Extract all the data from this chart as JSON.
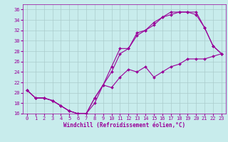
{
  "xlabel": "Windchill (Refroidissement éolien,°C)",
  "bg_color": "#c8ecec",
  "line_color": "#990099",
  "grid_color": "#aacccc",
  "xlim": [
    -0.5,
    23.5
  ],
  "ylim": [
    16,
    37
  ],
  "yticks": [
    16,
    18,
    20,
    22,
    24,
    26,
    28,
    30,
    32,
    34,
    36
  ],
  "xticks": [
    0,
    1,
    2,
    3,
    4,
    5,
    6,
    7,
    8,
    9,
    10,
    11,
    12,
    13,
    14,
    15,
    16,
    17,
    18,
    19,
    20,
    21,
    22,
    23
  ],
  "line1_x": [
    0,
    1,
    2,
    3,
    4,
    5,
    6,
    7,
    8,
    9,
    10,
    11,
    12,
    13,
    14,
    15,
    16,
    17,
    18,
    19,
    20,
    21,
    22,
    23
  ],
  "line1_y": [
    20.5,
    19.0,
    19.0,
    18.5,
    17.5,
    16.5,
    16.0,
    16.0,
    19.0,
    21.5,
    25.0,
    28.5,
    28.5,
    31.5,
    32.0,
    33.5,
    34.5,
    35.5,
    35.5,
    35.5,
    35.5,
    32.5,
    29.0,
    27.5
  ],
  "line2_x": [
    0,
    1,
    2,
    3,
    4,
    5,
    6,
    7,
    8,
    9,
    10,
    11,
    12,
    13,
    14,
    15,
    16,
    17,
    18,
    19,
    20,
    21,
    22,
    23
  ],
  "line2_y": [
    20.5,
    19.0,
    19.0,
    18.5,
    17.5,
    16.5,
    16.0,
    16.0,
    19.0,
    21.5,
    24.0,
    27.5,
    28.5,
    31.0,
    32.0,
    33.0,
    34.5,
    35.0,
    35.5,
    35.5,
    35.0,
    32.5,
    29.0,
    27.5
  ],
  "line3_x": [
    0,
    1,
    2,
    3,
    4,
    5,
    6,
    7,
    8,
    9,
    10,
    11,
    12,
    13,
    14,
    15,
    16,
    17,
    18,
    19,
    20,
    21,
    22,
    23
  ],
  "line3_y": [
    20.5,
    19.0,
    19.0,
    18.5,
    17.5,
    16.5,
    16.0,
    16.0,
    18.0,
    21.5,
    21.0,
    23.0,
    24.5,
    24.0,
    25.0,
    23.0,
    24.0,
    25.0,
    25.5,
    26.5,
    26.5,
    26.5,
    27.0,
    27.5
  ],
  "xlabel_fontsize": 5.5,
  "tick_fontsize": 5,
  "linewidth": 0.8,
  "markersize": 2.0
}
